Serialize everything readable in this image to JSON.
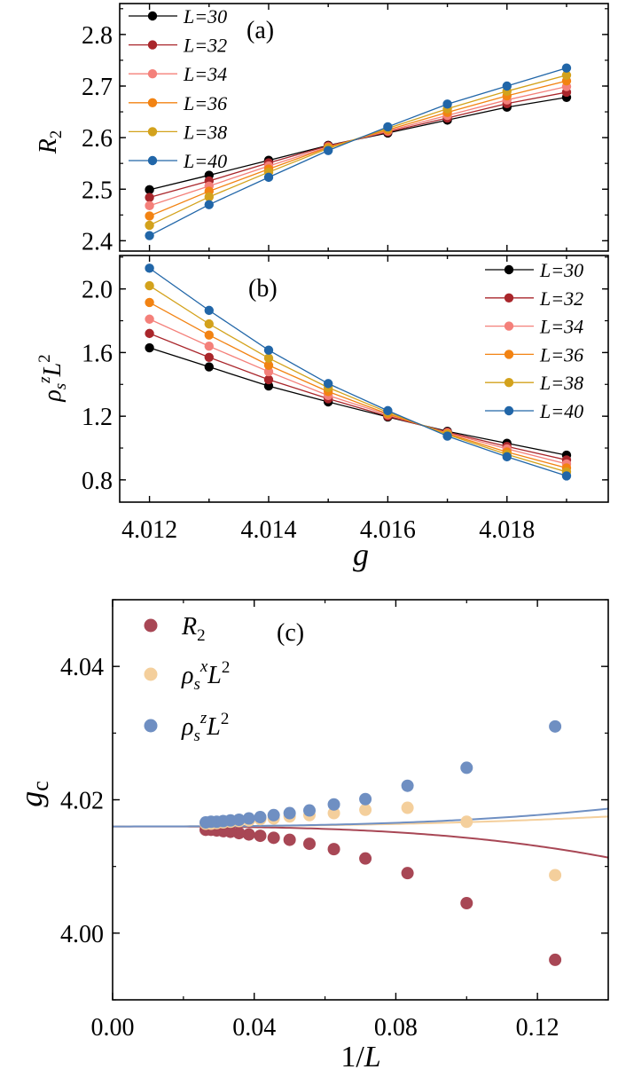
{
  "colors": {
    "L30": "#000000",
    "L32": "#a9262b",
    "L34": "#f4807a",
    "L36": "#f28313",
    "L38": "#d3a21c",
    "L40": "#2166a8",
    "c_R2": "#a84755",
    "c_rhox": "#f4cf9c",
    "c_rhoz": "#6f8fc2",
    "axis": "#000000"
  },
  "chart_data": [
    {
      "panel_label": "(a)",
      "type": "line",
      "ylabel": "R",
      "ylabel_sub": "2",
      "x": [
        4.012,
        4.013,
        4.014,
        4.015,
        4.016,
        4.017,
        4.018,
        4.019
      ],
      "xlim": [
        4.0115,
        4.0197
      ],
      "ylim": [
        2.38,
        2.86
      ],
      "yticks": [
        "2.4",
        "2.5",
        "2.6",
        "2.7",
        "2.8"
      ],
      "legend_position": "top-left",
      "series": [
        {
          "name": "L=30",
          "color_key": "L30",
          "values": [
            2.499,
            2.527,
            2.556,
            2.585,
            2.609,
            2.634,
            2.659,
            2.678
          ]
        },
        {
          "name": "L=32",
          "color_key": "L32",
          "values": [
            2.484,
            2.516,
            2.551,
            2.584,
            2.611,
            2.638,
            2.666,
            2.688
          ]
        },
        {
          "name": "L=34",
          "color_key": "L34",
          "values": [
            2.468,
            2.506,
            2.545,
            2.582,
            2.613,
            2.643,
            2.673,
            2.699
          ]
        },
        {
          "name": "L=36",
          "color_key": "L36",
          "values": [
            2.448,
            2.496,
            2.539,
            2.581,
            2.615,
            2.649,
            2.681,
            2.71
          ]
        },
        {
          "name": "L=38",
          "color_key": "L38",
          "values": [
            2.43,
            2.485,
            2.533,
            2.579,
            2.618,
            2.656,
            2.69,
            2.721
          ]
        },
        {
          "name": "L=40",
          "color_key": "L40",
          "values": [
            2.41,
            2.47,
            2.523,
            2.575,
            2.621,
            2.665,
            2.7,
            2.735
          ]
        }
      ]
    },
    {
      "panel_label": "(b)",
      "type": "line",
      "ylabel": "ρ",
      "ylabel_sub": "s",
      "ylabel_sup": "z",
      "ylabel_tail": "L",
      "ylabel_tail_sup": "2",
      "xlabel": "g",
      "x": [
        4.012,
        4.013,
        4.014,
        4.015,
        4.016,
        4.017,
        4.018,
        4.019
      ],
      "xlim": [
        4.0115,
        4.0197
      ],
      "xticks": [
        "4.012",
        "4.014",
        "4.016",
        "4.018"
      ],
      "ylim": [
        0.66,
        2.21
      ],
      "yticks": [
        "0.8",
        "1.2",
        "1.6",
        "2.0"
      ],
      "legend_position": "top-right",
      "series": [
        {
          "name": "L=30",
          "color_key": "L30",
          "values": [
            1.63,
            1.51,
            1.39,
            1.29,
            1.195,
            1.105,
            1.03,
            0.955
          ]
        },
        {
          "name": "L=32",
          "color_key": "L32",
          "values": [
            1.72,
            1.57,
            1.43,
            1.31,
            1.2,
            1.1,
            1.01,
            0.925
          ]
        },
        {
          "name": "L=34",
          "color_key": "L34",
          "values": [
            1.81,
            1.64,
            1.48,
            1.33,
            1.21,
            1.095,
            0.995,
            0.9
          ]
        },
        {
          "name": "L=36",
          "color_key": "L36",
          "values": [
            1.915,
            1.71,
            1.52,
            1.355,
            1.215,
            1.09,
            0.975,
            0.875
          ]
        },
        {
          "name": "L=38",
          "color_key": "L38",
          "values": [
            2.02,
            1.78,
            1.565,
            1.38,
            1.225,
            1.085,
            0.96,
            0.85
          ]
        },
        {
          "name": "L=40",
          "color_key": "L40",
          "values": [
            2.13,
            1.865,
            1.615,
            1.405,
            1.235,
            1.075,
            0.945,
            0.825
          ]
        }
      ]
    },
    {
      "panel_label": "(c)",
      "type": "scatter",
      "ylabel": "g",
      "ylabel_sub": "c",
      "xlabel": "1/L",
      "xlim": [
        0.0,
        0.14
      ],
      "ylim": [
        3.99,
        4.05
      ],
      "xticks": [
        "0.00",
        "0.04",
        "0.08",
        "0.12"
      ],
      "yticks": [
        "4.00",
        "4.02",
        "4.04"
      ],
      "legend_position": "top-left",
      "series": [
        {
          "name": "R2",
          "label_main": "R",
          "label_sub": "2",
          "color_key": "c_R2",
          "x": [
            0.125,
            0.1,
            0.0833,
            0.0714,
            0.0625,
            0.0556,
            0.05,
            0.0455,
            0.0417,
            0.0385,
            0.0357,
            0.0333,
            0.03125,
            0.0294,
            0.0278,
            0.0263
          ],
          "y": [
            3.996,
            4.0045,
            4.009,
            4.0112,
            4.0126,
            4.0134,
            4.014,
            4.0143,
            4.0146,
            4.0148,
            4.015,
            4.0152,
            4.0153,
            4.0154,
            4.0155,
            4.0155
          ],
          "fit": {
            "g0": 4.016,
            "a": 0.0,
            "b": -1.7
          }
        },
        {
          "name": "rho_x",
          "label_main": "ρ",
          "label_sub": "s",
          "label_sup": "x",
          "label_tail": "L",
          "label_tail_sup": "2",
          "color_key": "c_rhox",
          "x": [
            0.125,
            0.1,
            0.0833,
            0.0714,
            0.0625,
            0.0556,
            0.05,
            0.0455,
            0.0417,
            0.0385,
            0.0357,
            0.0333,
            0.03125,
            0.0294,
            0.0278,
            0.0263
          ],
          "y": [
            4.0087,
            4.0167,
            4.0188,
            4.0185,
            4.018,
            4.0177,
            4.0175,
            4.0172,
            4.0171,
            4.0169,
            4.0168,
            4.0167,
            4.0166,
            4.0165,
            4.0164,
            4.0164
          ],
          "fit": {
            "g0": 4.016,
            "a": 0.034,
            "b": 0.3
          }
        },
        {
          "name": "rho_z",
          "label_main": "ρ",
          "label_sub": "s",
          "label_sup": "z",
          "label_tail": "L",
          "label_tail_sup": "2",
          "color_key": "c_rhoz",
          "x": [
            0.125,
            0.1,
            0.0833,
            0.0714,
            0.0625,
            0.0556,
            0.05,
            0.0455,
            0.0417,
            0.0385,
            0.0357,
            0.0333,
            0.03125,
            0.0294,
            0.0278,
            0.0263
          ],
          "y": [
            4.031,
            4.0248,
            4.0221,
            4.0201,
            4.0193,
            4.0184,
            4.018,
            4.0177,
            4.0174,
            4.0172,
            4.017,
            4.0169,
            4.0168,
            4.0167,
            4.0167,
            4.0166
          ],
          "fit": {
            "g0": 4.016,
            "a": 0.017,
            "b": 0.85
          }
        }
      ]
    }
  ]
}
